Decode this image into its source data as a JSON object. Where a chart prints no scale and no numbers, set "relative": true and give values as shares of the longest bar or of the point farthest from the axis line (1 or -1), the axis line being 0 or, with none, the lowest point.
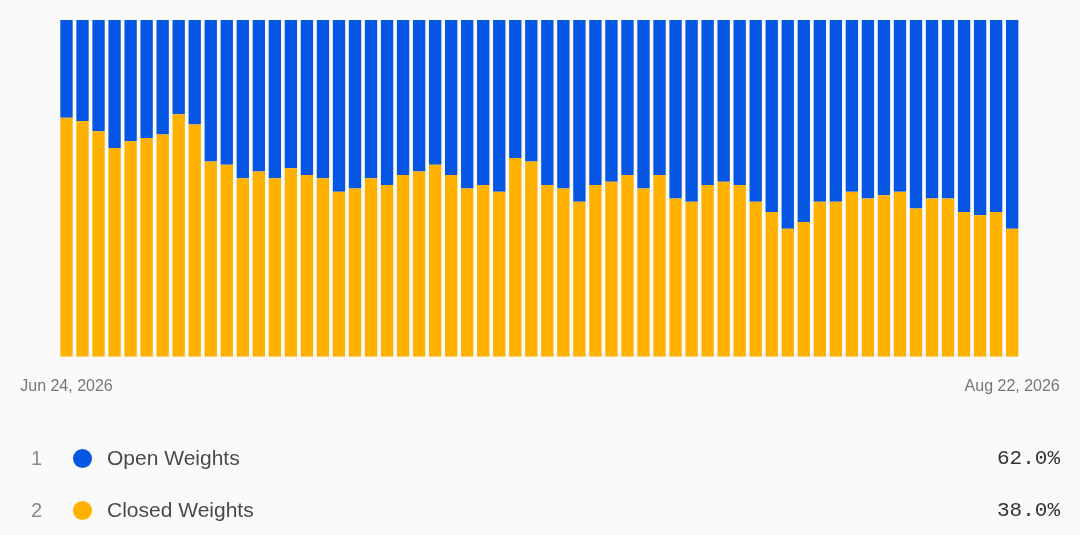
{
  "chart_data": {
    "type": "bar",
    "stacked": true,
    "relative": true,
    "categories": [
      "Jun 24, 2026",
      null,
      null,
      null,
      null,
      null,
      null,
      null,
      null,
      null,
      null,
      null,
      null,
      null,
      null,
      null,
      null,
      null,
      null,
      null,
      null,
      null,
      null,
      null,
      null,
      null,
      null,
      null,
      null,
      null,
      null,
      null,
      null,
      null,
      null,
      null,
      null,
      null,
      null,
      null,
      null,
      null,
      null,
      null,
      null,
      null,
      null,
      null,
      null,
      null,
      null,
      null,
      null,
      null,
      null,
      null,
      null,
      null,
      null,
      "Aug 22, 2026"
    ],
    "series": [
      {
        "name": "Closed Weights",
        "color": "#ffb100",
        "values": [
          0.71,
          0.7,
          0.67,
          0.62,
          0.64,
          0.65,
          0.66,
          0.72,
          0.69,
          0.58,
          0.57,
          0.53,
          0.55,
          0.53,
          0.56,
          0.54,
          0.53,
          0.49,
          0.5,
          0.53,
          0.51,
          0.54,
          0.55,
          0.57,
          0.54,
          0.5,
          0.51,
          0.49,
          0.59,
          0.58,
          0.51,
          0.5,
          0.46,
          0.51,
          0.52,
          0.54,
          0.5,
          0.54,
          0.47,
          0.46,
          0.51,
          0.52,
          0.51,
          0.46,
          0.43,
          0.38,
          0.4,
          0.46,
          0.46,
          0.49,
          0.47,
          0.48,
          0.49,
          0.44,
          0.47,
          0.47,
          0.43,
          0.42,
          0.43,
          0.38
        ]
      },
      {
        "name": "Open Weights",
        "color": "#0557e3",
        "values": [
          0.29,
          0.3,
          0.33,
          0.38,
          0.36,
          0.35,
          0.34,
          0.28,
          0.31,
          0.42,
          0.43,
          0.47,
          0.45,
          0.47,
          0.44,
          0.46,
          0.47,
          0.51,
          0.5,
          0.47,
          0.49,
          0.46,
          0.45,
          0.43,
          0.46,
          0.5,
          0.49,
          0.51,
          0.41,
          0.42,
          0.49,
          0.5,
          0.54,
          0.49,
          0.48,
          0.46,
          0.5,
          0.46,
          0.53,
          0.54,
          0.49,
          0.48,
          0.49,
          0.54,
          0.57,
          0.62,
          0.6,
          0.54,
          0.54,
          0.51,
          0.53,
          0.52,
          0.51,
          0.56,
          0.53,
          0.53,
          0.57,
          0.58,
          0.57,
          0.62
        ]
      }
    ],
    "legend": "bottom",
    "annotations": [
      "1",
      "62.0%",
      "2",
      "38.0%"
    ]
  }
}
